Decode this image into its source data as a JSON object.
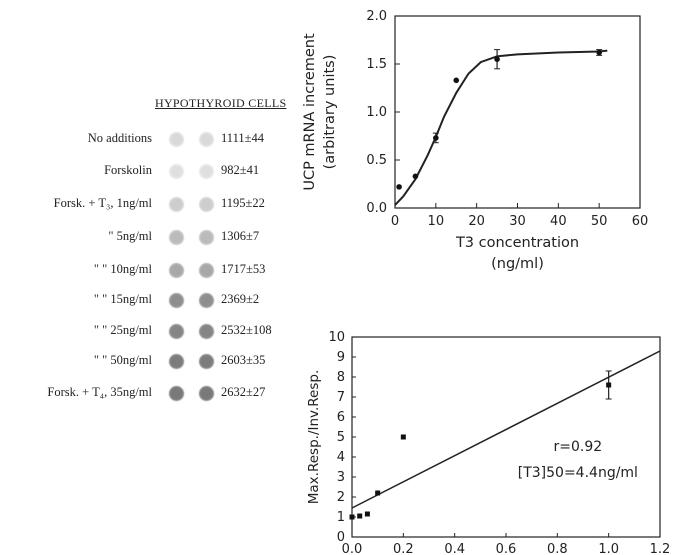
{
  "blot": {
    "title": "HYPOTHYROID CELLS",
    "rows": [
      {
        "label": "No additions",
        "value": "1111±44",
        "intensity": 0.12
      },
      {
        "label": "Forskolin",
        "value": "982±41",
        "intensity": 0.08
      },
      {
        "label": "Forsk. + T₃, 1ng/ml",
        "value": "1195±22",
        "intensity": 0.2
      },
      {
        "label": "\"     5ng/ml",
        "value": "1306±7",
        "intensity": 0.32
      },
      {
        "label": "\"     \"  10ng/ml",
        "value": "1717±53",
        "intensity": 0.45
      },
      {
        "label": "\"     \"  15ng/ml",
        "value": "2369±2",
        "intensity": 0.62
      },
      {
        "label": "\"     \"  25ng/ml",
        "value": "2532±108",
        "intensity": 0.68
      },
      {
        "label": "\"     \"  50ng/ml",
        "value": "2603±35",
        "intensity": 0.74
      },
      {
        "label": "Forsk. + T₄, 35ng/ml",
        "value": "2632±27",
        "intensity": 0.76
      }
    ]
  },
  "chart_data": [
    {
      "type": "scatter",
      "title": "",
      "xlabel": "T3 concentration",
      "xlabel_unit": "(ng/ml)",
      "ylabel": "UCP mRNA increment",
      "ylabel_unit": "(arbitrary units)",
      "xlim": [
        0,
        60
      ],
      "ylim": [
        0,
        2.0
      ],
      "xticks": [
        0,
        10,
        20,
        30,
        40,
        50,
        60
      ],
      "yticks": [
        0.0,
        0.5,
        1.0,
        1.5,
        2.0
      ],
      "points": [
        {
          "x": 1,
          "y": 0.22
        },
        {
          "x": 5,
          "y": 0.33
        },
        {
          "x": 10,
          "y": 0.73,
          "err": 0.05
        },
        {
          "x": 15,
          "y": 1.33
        },
        {
          "x": 25,
          "y": 1.55,
          "err": 0.1
        },
        {
          "x": 50,
          "y": 1.62,
          "err": 0.03
        }
      ],
      "curve": [
        [
          0,
          0.03
        ],
        [
          2,
          0.12
        ],
        [
          5,
          0.3
        ],
        [
          8,
          0.55
        ],
        [
          10,
          0.74
        ],
        [
          12,
          0.95
        ],
        [
          15,
          1.2
        ],
        [
          18,
          1.4
        ],
        [
          21,
          1.52
        ],
        [
          25,
          1.58
        ],
        [
          30,
          1.6
        ],
        [
          40,
          1.62
        ],
        [
          50,
          1.63
        ],
        [
          52,
          1.64
        ]
      ]
    },
    {
      "type": "scatter",
      "title": "",
      "xlabel": "",
      "ylabel": "Max.Resp./Inv.Resp.",
      "xlim": [
        0,
        1.2
      ],
      "ylim": [
        0,
        10
      ],
      "xticks": [
        0.0,
        0.2,
        0.4,
        0.6,
        0.8,
        1.0,
        1.2
      ],
      "yticks": [
        0,
        1,
        2,
        3,
        4,
        5,
        6,
        7,
        8,
        9,
        10
      ],
      "points": [
        {
          "x": 0.0,
          "y": 1.0
        },
        {
          "x": 0.03,
          "y": 1.05
        },
        {
          "x": 0.06,
          "y": 1.15
        },
        {
          "x": 0.1,
          "y": 2.2
        },
        {
          "x": 0.2,
          "y": 5.0
        },
        {
          "x": 1.0,
          "y": 7.6,
          "err": 0.7
        }
      ],
      "fit_line": [
        [
          0.0,
          1.45
        ],
        [
          1.2,
          9.3
        ]
      ],
      "annotations": [
        "r=0.92",
        "[T3]50=4.4ng/ml"
      ]
    }
  ]
}
